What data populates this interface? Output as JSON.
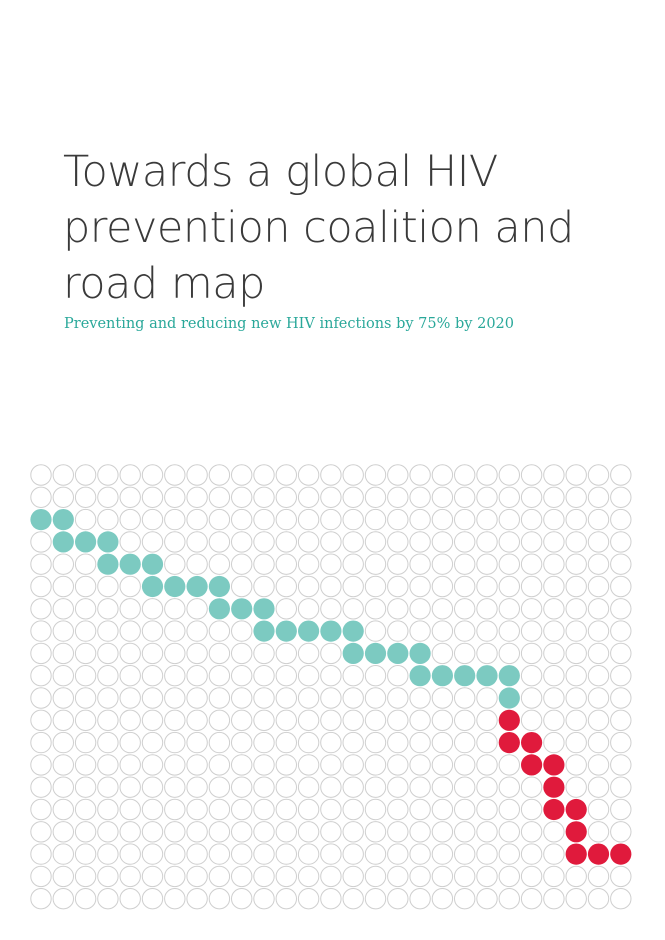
{
  "cover": {
    "title_lines": [
      "Towards a global HIV",
      "prevention coalition and",
      "road map"
    ],
    "subtitle": "Preventing and reducing new HIV infections by 75% by 2020"
  },
  "graphic": {
    "type": "dot-grid",
    "columns": 27,
    "rows": 20,
    "colors": {
      "empty_stroke": "#cfcfcf",
      "teal": "#7ccac1",
      "red": "#e01a3c"
    },
    "teal_cells": [
      [
        0,
        2
      ],
      [
        1,
        2
      ],
      [
        1,
        3
      ],
      [
        2,
        3
      ],
      [
        3,
        3
      ],
      [
        3,
        4
      ],
      [
        4,
        4
      ],
      [
        5,
        4
      ],
      [
        5,
        5
      ],
      [
        6,
        5
      ],
      [
        7,
        5
      ],
      [
        8,
        5
      ],
      [
        8,
        6
      ],
      [
        9,
        6
      ],
      [
        10,
        6
      ],
      [
        10,
        7
      ],
      [
        11,
        7
      ],
      [
        12,
        7
      ],
      [
        13,
        7
      ],
      [
        14,
        7
      ],
      [
        14,
        8
      ],
      [
        15,
        8
      ],
      [
        16,
        8
      ],
      [
        17,
        8
      ],
      [
        17,
        9
      ],
      [
        18,
        9
      ],
      [
        19,
        9
      ],
      [
        20,
        9
      ],
      [
        21,
        9
      ],
      [
        21,
        10
      ]
    ],
    "red_cells": [
      [
        21,
        11
      ],
      [
        21,
        12
      ],
      [
        22,
        12
      ],
      [
        22,
        13
      ],
      [
        23,
        13
      ],
      [
        23,
        14
      ],
      [
        23,
        15
      ],
      [
        24,
        15
      ],
      [
        24,
        16
      ],
      [
        24,
        17
      ],
      [
        25,
        17
      ],
      [
        26,
        17
      ]
    ]
  }
}
